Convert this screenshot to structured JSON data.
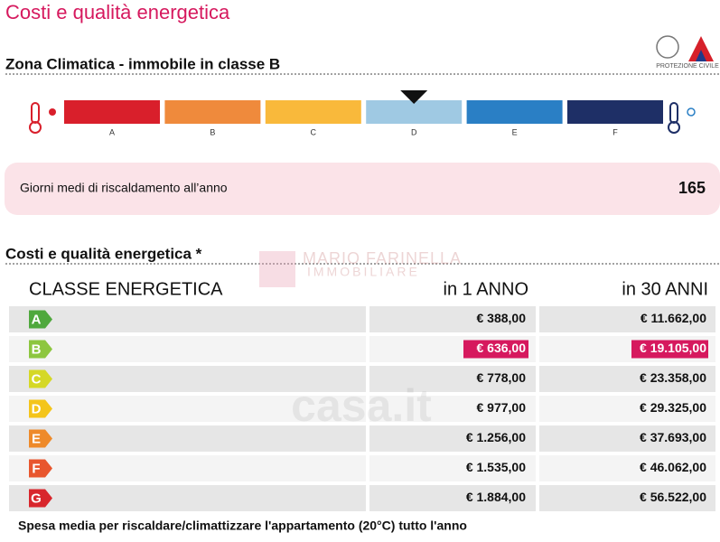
{
  "title": "Costi e qualità energetica",
  "logo": {
    "caption": "PROTEZIONE CIVILE"
  },
  "zone": {
    "heading": "Zona Climatica - immobile in classe B",
    "selected_zone": "D",
    "zones": [
      {
        "label": "A",
        "color": "#d91f2b"
      },
      {
        "label": "B",
        "color": "#ef8a3c"
      },
      {
        "label": "C",
        "color": "#f9b93b"
      },
      {
        "label": "D",
        "color": "#9fc9e3"
      },
      {
        "label": "E",
        "color": "#2a7fc5"
      },
      {
        "label": "F",
        "color": "#1e2f66"
      }
    ]
  },
  "heating": {
    "label": "Giorni medi di riscaldamento all’anno",
    "value": "165"
  },
  "costs": {
    "heading": "Costi e qualità energetica *",
    "watermark": [
      "MARIO FARINELLA",
      "IMMOBILIARE",
      "casa.it"
    ],
    "headers": [
      "CLASSE ENERGETICA",
      "in 1 ANNO",
      "in 30 ANNI"
    ],
    "highlighted_class": "B",
    "rows": [
      {
        "class": "A",
        "color": "#4fa83d",
        "year": "€ 388,00",
        "thirty": "€ 11.662,00"
      },
      {
        "class": "B",
        "color": "#8dc63f",
        "year": "€ 636,00",
        "thirty": "€ 19.105,00"
      },
      {
        "class": "C",
        "color": "#d5d826",
        "year": "€ 778,00",
        "thirty": "€ 23.358,00"
      },
      {
        "class": "D",
        "color": "#f4c51b",
        "year": "€ 977,00",
        "thirty": "€ 29.325,00"
      },
      {
        "class": "E",
        "color": "#ee8a2a",
        "year": "€ 1.256,00",
        "thirty": "€ 37.693,00"
      },
      {
        "class": "F",
        "color": "#e8562e",
        "year": "€ 1.535,00",
        "thirty": "€ 46.062,00"
      },
      {
        "class": "G",
        "color": "#d8262c",
        "year": "€ 1.884,00",
        "thirty": "€ 56.522,00"
      }
    ],
    "footnote": "Spesa media per riscaldare/climattizzare l'appartamento (20°C) tutto l'anno"
  }
}
